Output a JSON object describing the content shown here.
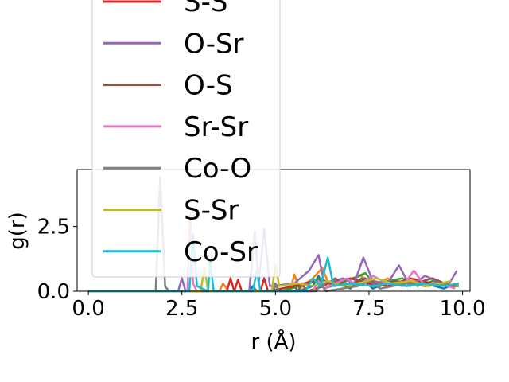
{
  "chart_data": {
    "type": "line",
    "xlabel": "r (Å)",
    "ylabel": "g(r)",
    "xlim": [
      -0.3,
      10.2
    ],
    "ylim": [
      0,
      4.7
    ],
    "xticks": [
      0.0,
      2.5,
      5.0,
      7.5,
      10.0
    ],
    "xtick_labels": [
      "0.0",
      "2.5",
      "5.0",
      "7.5",
      "10.0"
    ],
    "yticks": [
      0.0,
      2.5
    ],
    "ytick_labels": [
      "0.0",
      "2.5"
    ],
    "grid": false,
    "legend_placement": "upper-left (overflowing top)",
    "series": [
      {
        "name": "",
        "color": "#1f77b4",
        "points": [
          [
            0,
            0
          ],
          [
            4.3,
            0
          ],
          [
            4.4,
            0.2
          ],
          [
            4.5,
            0
          ],
          [
            5.3,
            0
          ],
          [
            5.45,
            0.3
          ],
          [
            5.6,
            0
          ],
          [
            6.0,
            0.2
          ],
          [
            6.15,
            0.6
          ],
          [
            6.3,
            0.1
          ],
          [
            6.7,
            0.3
          ],
          [
            7.0,
            0.1
          ],
          [
            7.3,
            0.5
          ],
          [
            7.6,
            0.1
          ],
          [
            8.1,
            0.4
          ],
          [
            8.5,
            0.2
          ],
          [
            9.0,
            0.3
          ],
          [
            9.5,
            0.1
          ],
          [
            9.8,
            0.3
          ]
        ]
      },
      {
        "name": "",
        "color": "#ff7f0e",
        "points": [
          [
            0,
            0
          ],
          [
            3.5,
            0
          ],
          [
            3.6,
            0.3
          ],
          [
            3.75,
            0
          ],
          [
            5.4,
            0
          ],
          [
            5.5,
            0.65
          ],
          [
            5.65,
            0.1
          ],
          [
            6.0,
            0.5
          ],
          [
            6.25,
            0.9
          ],
          [
            6.45,
            0.2
          ],
          [
            6.8,
            0.4
          ],
          [
            7.3,
            0.6
          ],
          [
            7.6,
            0.2
          ],
          [
            8.0,
            0.5
          ],
          [
            8.3,
            0.3
          ],
          [
            8.6,
            0.4
          ],
          [
            9.1,
            0.3
          ],
          [
            9.6,
            0.2
          ],
          [
            9.9,
            0.3
          ]
        ]
      },
      {
        "name": "",
        "color": "#2ca02c",
        "points": [
          [
            0,
            0
          ],
          [
            4.9,
            0
          ],
          [
            5.0,
            0.2
          ],
          [
            5.15,
            0
          ],
          [
            5.9,
            0.3
          ],
          [
            6.2,
            0.5
          ],
          [
            6.6,
            0.2
          ],
          [
            6.9,
            0.4
          ],
          [
            7.4,
            0.7
          ],
          [
            7.7,
            0.2
          ],
          [
            8.0,
            0.4
          ],
          [
            8.4,
            0.5
          ],
          [
            8.8,
            0.2
          ],
          [
            9.2,
            0.4
          ],
          [
            9.6,
            0.2
          ],
          [
            9.9,
            0.2
          ]
        ]
      },
      {
        "name": "S-S",
        "color": "#d62728",
        "points": [
          [
            0,
            0
          ],
          [
            3.7,
            0
          ],
          [
            3.8,
            0.5
          ],
          [
            3.9,
            0
          ],
          [
            4.0,
            0.45
          ],
          [
            4.1,
            0
          ],
          [
            4.6,
            0
          ],
          [
            4.7,
            0.5
          ],
          [
            4.8,
            0
          ],
          [
            5.5,
            0.2
          ],
          [
            6.0,
            0.4
          ],
          [
            6.5,
            0.3
          ],
          [
            7.0,
            0.5
          ],
          [
            7.5,
            0.3
          ],
          [
            8.0,
            0.2
          ],
          [
            8.6,
            0.5
          ],
          [
            9.2,
            0.3
          ],
          [
            9.8,
            0.2
          ]
        ]
      },
      {
        "name": "O-Sr",
        "color": "#9467bd",
        "points": [
          [
            0,
            0
          ],
          [
            2.4,
            0
          ],
          [
            2.5,
            0.5
          ],
          [
            2.6,
            0
          ],
          [
            4.3,
            0
          ],
          [
            4.45,
            2.3
          ],
          [
            4.55,
            0.3
          ],
          [
            4.7,
            2.4
          ],
          [
            4.85,
            0.2
          ],
          [
            5.5,
            0.3
          ],
          [
            5.9,
            0.8
          ],
          [
            6.15,
            1.4
          ],
          [
            6.3,
            0.3
          ],
          [
            6.8,
            0.5
          ],
          [
            7.1,
            0.3
          ],
          [
            7.35,
            1.3
          ],
          [
            7.6,
            0.4
          ],
          [
            8.0,
            0.3
          ],
          [
            8.3,
            1.0
          ],
          [
            8.6,
            0.2
          ],
          [
            9.0,
            0.6
          ],
          [
            9.3,
            0.4
          ],
          [
            9.6,
            0.2
          ],
          [
            9.85,
            0.8
          ]
        ]
      },
      {
        "name": "O-S",
        "color": "#8c564b",
        "points": [
          [
            0,
            0
          ],
          [
            5.6,
            0
          ],
          [
            5.7,
            0.3
          ],
          [
            5.85,
            0
          ],
          [
            6.3,
            0.2
          ],
          [
            6.6,
            0.5
          ],
          [
            6.9,
            0.2
          ],
          [
            7.4,
            0.5
          ],
          [
            7.8,
            0.2
          ],
          [
            8.2,
            0.4
          ],
          [
            8.7,
            0.3
          ],
          [
            9.2,
            0.5
          ],
          [
            9.7,
            0.2
          ]
        ]
      },
      {
        "name": "Sr-Sr",
        "color": "#e377c2",
        "points": [
          [
            0,
            0
          ],
          [
            2.65,
            0
          ],
          [
            2.72,
            3.0
          ],
          [
            2.8,
            0.3
          ],
          [
            2.9,
            0
          ],
          [
            6.0,
            0
          ],
          [
            6.15,
            0.4
          ],
          [
            6.3,
            0.1
          ],
          [
            6.6,
            0.3
          ],
          [
            6.9,
            0.5
          ],
          [
            7.2,
            0.2
          ],
          [
            7.6,
            0.6
          ],
          [
            8.0,
            0.3
          ],
          [
            8.4,
            0.2
          ],
          [
            8.7,
            0.8
          ],
          [
            9.0,
            0.2
          ],
          [
            9.4,
            0.3
          ],
          [
            9.8,
            0.1
          ]
        ]
      },
      {
        "name": "Co-O",
        "color": "#7f7f7f",
        "points": [
          [
            0,
            0
          ],
          [
            1.8,
            0
          ],
          [
            1.92,
            4.4
          ],
          [
            2.05,
            0.2
          ],
          [
            2.15,
            0
          ],
          [
            4.9,
            0
          ],
          [
            5.0,
            0.3
          ],
          [
            5.1,
            0
          ],
          [
            6.1,
            0
          ],
          [
            6.2,
            0.3
          ],
          [
            6.35,
            0
          ],
          [
            7.2,
            0.2
          ],
          [
            7.5,
            0.4
          ],
          [
            7.8,
            0.1
          ],
          [
            8.5,
            0.3
          ],
          [
            9.0,
            0.2
          ],
          [
            9.6,
            0.3
          ]
        ]
      },
      {
        "name": "S-Sr",
        "color": "#bcbd22",
        "points": [
          [
            0,
            0
          ],
          [
            3.0,
            0
          ],
          [
            3.1,
            0.9
          ],
          [
            3.2,
            0
          ],
          [
            4.9,
            0
          ],
          [
            5.0,
            1.0
          ],
          [
            5.1,
            0.2
          ],
          [
            5.6,
            0.3
          ],
          [
            6.0,
            0.2
          ],
          [
            6.4,
            0.4
          ],
          [
            6.8,
            0.2
          ],
          [
            7.2,
            0.3
          ],
          [
            7.7,
            0.5
          ],
          [
            8.1,
            0.3
          ],
          [
            8.6,
            0.4
          ],
          [
            9.1,
            0.2
          ],
          [
            9.7,
            0.4
          ]
        ]
      },
      {
        "name": "Co-Sr",
        "color": "#17becf",
        "points": [
          [
            0,
            0
          ],
          [
            2.7,
            0
          ],
          [
            2.8,
            2.2
          ],
          [
            2.9,
            0.2
          ],
          [
            3.2,
            0
          ],
          [
            3.25,
            1.2
          ],
          [
            3.35,
            0
          ],
          [
            4.4,
            0
          ],
          [
            4.5,
            0.8
          ],
          [
            4.6,
            0
          ],
          [
            5.8,
            0
          ],
          [
            6.0,
            0.5
          ],
          [
            6.2,
            0.2
          ],
          [
            6.4,
            1.3
          ],
          [
            6.55,
            0.2
          ],
          [
            7.0,
            0.3
          ],
          [
            7.6,
            0.2
          ],
          [
            8.0,
            0.3
          ],
          [
            8.5,
            0.2
          ],
          [
            9.0,
            0.3
          ],
          [
            9.5,
            0.2
          ],
          [
            9.9,
            0.3
          ]
        ]
      }
    ],
    "legend_entries": [
      "S-S",
      "O-Sr",
      "O-S",
      "Sr-Sr",
      "Co-O",
      "S-Sr",
      "Co-Sr"
    ]
  }
}
